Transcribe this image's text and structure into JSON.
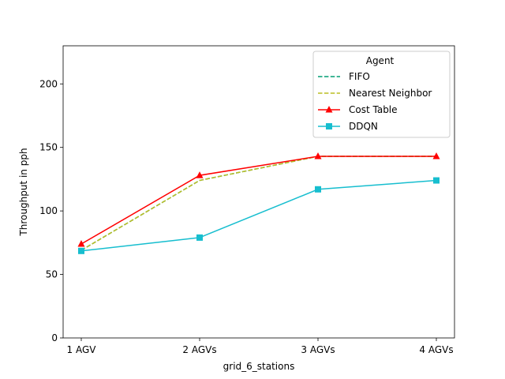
{
  "chart_data": {
    "type": "line",
    "title": "",
    "xlabel": "grid_6_stations",
    "ylabel": "Throughput in pph",
    "categories": [
      "1 AGV",
      "2 AGVs",
      "3 AGVs",
      "4 AGVs"
    ],
    "ylim": [
      0,
      230
    ],
    "yticks": [
      0,
      50,
      100,
      150,
      200
    ],
    "grid": false,
    "legend": {
      "title": "Agent",
      "position": "top-right"
    },
    "series": [
      {
        "name": "FIFO",
        "values": [
          69,
          124,
          143,
          143
        ],
        "color": "#009e73",
        "linestyle": "dashed",
        "marker": "none"
      },
      {
        "name": "Nearest Neighbor",
        "values": [
          69,
          124,
          143,
          143
        ],
        "color": "#bcbd22",
        "linestyle": "dashed",
        "marker": "none"
      },
      {
        "name": "Cost Table",
        "values": [
          74,
          128,
          143,
          143
        ],
        "color": "#ff0000",
        "linestyle": "solid",
        "marker": "triangle"
      },
      {
        "name": "DDQN",
        "values": [
          68.5,
          79,
          117,
          124
        ],
        "color": "#17becf",
        "linestyle": "solid",
        "marker": "square"
      }
    ]
  }
}
